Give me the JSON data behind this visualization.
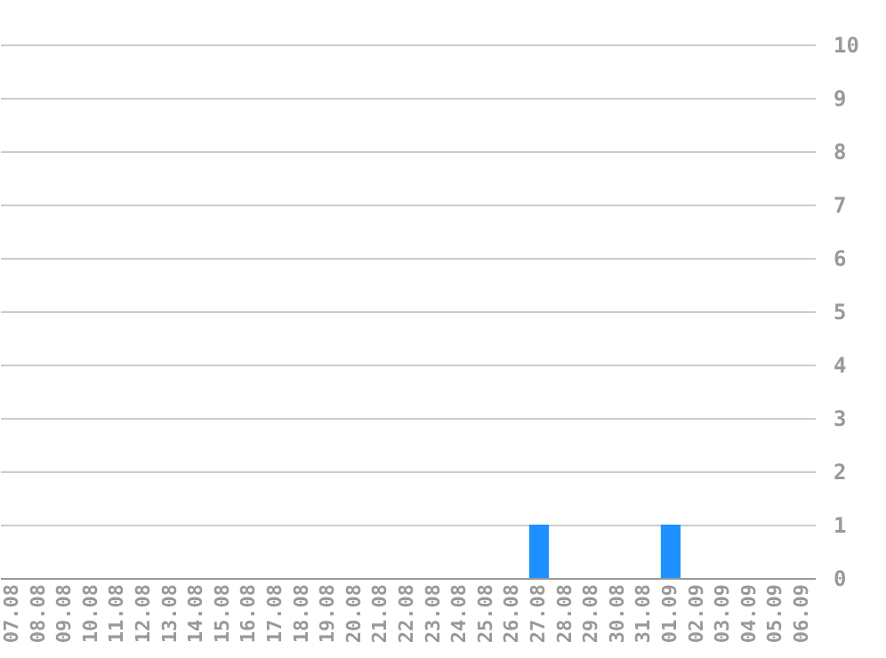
{
  "chart_data": {
    "type": "bar",
    "categories": [
      "07.08",
      "08.08",
      "09.08",
      "10.08",
      "11.08",
      "12.08",
      "13.08",
      "14.08",
      "15.08",
      "16.08",
      "17.08",
      "18.08",
      "19.08",
      "20.08",
      "21.08",
      "22.08",
      "23.08",
      "24.08",
      "25.08",
      "26.08",
      "27.08",
      "28.08",
      "29.08",
      "30.08",
      "31.08",
      "01.09",
      "02.09",
      "03.09",
      "04.09",
      "05.09",
      "06.09"
    ],
    "values": [
      0,
      0,
      0,
      0,
      0,
      0,
      0,
      0,
      0,
      0,
      0,
      0,
      0,
      0,
      0,
      0,
      0,
      0,
      0,
      0,
      1,
      0,
      0,
      0,
      0,
      1,
      0,
      0,
      0,
      0,
      0
    ],
    "color": "#1e90ff",
    "ylim": [
      0,
      10
    ],
    "yticks": [
      0,
      1,
      2,
      3,
      4,
      5,
      6,
      7,
      8,
      9,
      10
    ],
    "grid": "y"
  }
}
